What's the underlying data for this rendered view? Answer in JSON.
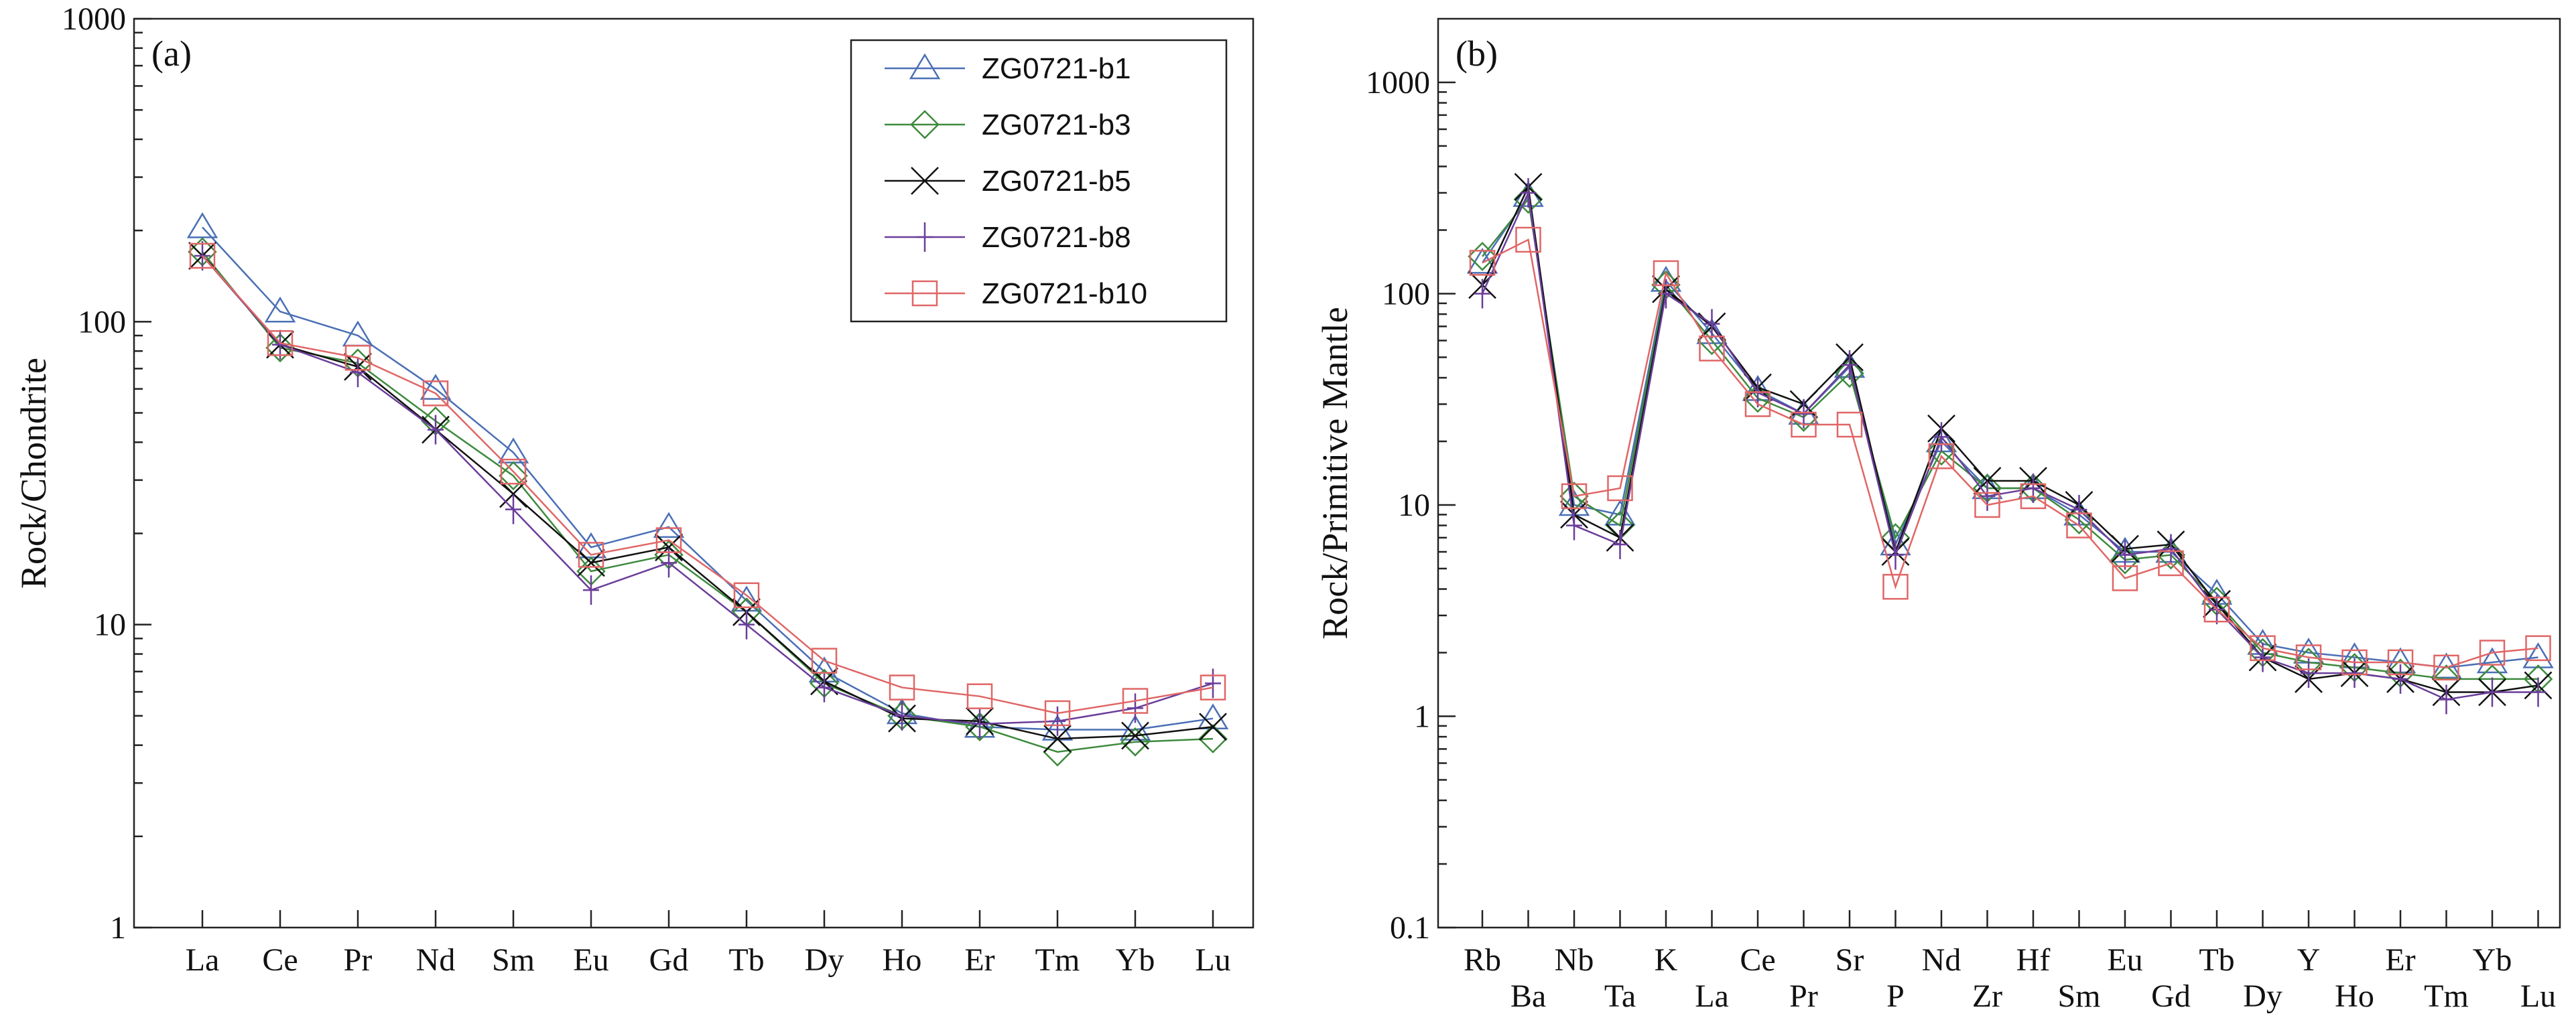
{
  "chart_data": [
    {
      "type": "line",
      "panel_label": "(a)",
      "xlabel": "",
      "ylabel": "Rock/Chondrite",
      "yscale": "log",
      "ylim": [
        1,
        1000
      ],
      "yticks": [
        "1",
        "10",
        "100",
        "1000"
      ],
      "categories": [
        "La",
        "Ce",
        "Pr",
        "Nd",
        "Sm",
        "Eu",
        "Gd",
        "Tb",
        "Dy",
        "Ho",
        "Er",
        "Tm",
        "Yb",
        "Lu"
      ],
      "legend_position": "top-right",
      "series": [
        {
          "name": "ZG0721-b1",
          "color": "#4a6fb5",
          "marker": "triangle",
          "values": [
            205,
            108,
            90,
            60,
            37,
            18,
            21,
            12,
            7,
            5.1,
            4.6,
            4.5,
            4.5,
            4.9
          ]
        },
        {
          "name": "ZG0721-b3",
          "color": "#3d8a3d",
          "marker": "diamond",
          "values": [
            170,
            82,
            73,
            47,
            31,
            15,
            17,
            11,
            6.4,
            5.0,
            4.6,
            3.8,
            4.1,
            4.2
          ]
        },
        {
          "name": "ZG0721-b5",
          "color": "#111111",
          "marker": "x",
          "values": [
            165,
            84,
            71,
            44,
            27,
            16,
            18,
            11,
            6.5,
            4.9,
            4.8,
            4.2,
            4.3,
            4.6
          ]
        },
        {
          "name": "ZG0721-b8",
          "color": "#6a3d9a",
          "marker": "plus",
          "values": [
            165,
            84,
            68,
            44,
            24,
            13,
            16,
            10,
            6.2,
            5.0,
            4.7,
            4.8,
            5.3,
            6.4
          ]
        },
        {
          "name": "ZG0721-b10",
          "color": "#e06666",
          "marker": "square",
          "values": [
            165,
            85,
            76,
            58,
            32,
            17,
            19,
            12.5,
            7.6,
            6.2,
            5.8,
            5.1,
            5.6,
            6.2
          ]
        }
      ]
    },
    {
      "type": "line",
      "panel_label": "(b)",
      "xlabel": "",
      "ylabel": "Rock/Primitive Mantle",
      "yscale": "log",
      "ylim": [
        0.1,
        2000
      ],
      "yticks": [
        "0.1",
        "1",
        "10",
        "100",
        "1000"
      ],
      "categories": [
        "Rb",
        "Ba",
        "Nb",
        "Ta",
        "K",
        "La",
        "Ce",
        "Pr",
        "Sr",
        "P",
        "Nd",
        "Zr",
        "Hf",
        "Sm",
        "Eu",
        "Gd",
        "Tb",
        "Dy",
        "Y",
        "Ho",
        "Er",
        "Tm",
        "Yb",
        "Lu"
      ],
      "series": [
        {
          "name": "ZG0721-b1",
          "color": "#4a6fb5",
          "marker": "triangle",
          "values": [
            140,
            290,
            10,
            9,
            115,
            65,
            35,
            27,
            45,
            6.5,
            20,
            12,
            12,
            9,
            6,
            6,
            3.8,
            2.2,
            2.0,
            1.9,
            1.8,
            1.7,
            1.8,
            1.9
          ]
        },
        {
          "name": "ZG0721-b3",
          "color": "#3d8a3d",
          "marker": "diamond",
          "values": [
            150,
            280,
            11,
            8,
            110,
            60,
            32,
            26,
            42,
            7,
            18,
            12,
            12,
            8.5,
            5.5,
            5.8,
            3.5,
            2.0,
            1.8,
            1.7,
            1.6,
            1.5,
            1.5,
            1.5
          ]
        },
        {
          "name": "ZG0721-b5",
          "color": "#111111",
          "marker": "x",
          "values": [
            110,
            320,
            9,
            7,
            105,
            70,
            36,
            30,
            50,
            6,
            23,
            13,
            13,
            10,
            6.2,
            6.5,
            3.4,
            1.9,
            1.5,
            1.6,
            1.5,
            1.3,
            1.3,
            1.4
          ]
        },
        {
          "name": "ZG0721-b8",
          "color": "#6a3d9a",
          "marker": "plus",
          "values": [
            100,
            300,
            8,
            6.5,
            100,
            72,
            34,
            27,
            46,
            5.8,
            21,
            11,
            12,
            9.5,
            5.8,
            6.2,
            3.2,
            1.9,
            1.6,
            1.6,
            1.5,
            1.2,
            1.3,
            1.3
          ]
        },
        {
          "name": "ZG0721-b10",
          "color": "#e06666",
          "marker": "square",
          "values": [
            140,
            180,
            11,
            12,
            125,
            55,
            30,
            24,
            24,
            4.1,
            17,
            10,
            11,
            8,
            4.5,
            5.3,
            3.2,
            2.1,
            1.9,
            1.8,
            1.8,
            1.7,
            2.0,
            2.1
          ]
        }
      ]
    }
  ]
}
